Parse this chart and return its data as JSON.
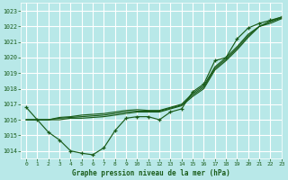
{
  "title": "Graphe pression niveau de la mer (hPa)",
  "bg_color": "#b8e8e8",
  "grid_color": "#ffffff",
  "line_color": "#1a5c1a",
  "text_color": "#1a5c1a",
  "xlim": [
    -0.5,
    23
  ],
  "ylim": [
    1013.5,
    1023.5
  ],
  "yticks": [
    1014,
    1015,
    1016,
    1017,
    1018,
    1019,
    1020,
    1021,
    1022,
    1023
  ],
  "xticks": [
    0,
    1,
    2,
    3,
    4,
    5,
    6,
    7,
    8,
    9,
    10,
    11,
    12,
    13,
    14,
    15,
    16,
    17,
    18,
    19,
    20,
    21,
    22,
    23
  ],
  "series_marked": [
    1016.8,
    1016.0,
    1015.2,
    1014.7,
    1014.0,
    1013.85,
    1013.75,
    1014.2,
    1015.3,
    1016.1,
    1016.2,
    1016.2,
    1016.0,
    1016.5,
    1016.7,
    1017.8,
    1018.3,
    1019.8,
    1020.0,
    1021.2,
    1021.9,
    1022.2,
    1022.4,
    1022.6
  ],
  "series_trend1": [
    1016.0,
    1016.0,
    1016.0,
    1016.0,
    1016.1,
    1016.1,
    1016.15,
    1016.2,
    1016.3,
    1016.4,
    1016.5,
    1016.5,
    1016.5,
    1016.7,
    1016.9,
    1017.5,
    1018.0,
    1019.2,
    1019.8,
    1020.5,
    1021.3,
    1022.0,
    1022.2,
    1022.5
  ],
  "series_trend2": [
    1016.0,
    1016.0,
    1016.0,
    1016.1,
    1016.15,
    1016.2,
    1016.25,
    1016.3,
    1016.4,
    1016.5,
    1016.55,
    1016.55,
    1016.55,
    1016.75,
    1016.95,
    1017.6,
    1018.1,
    1019.3,
    1019.9,
    1020.6,
    1021.4,
    1022.0,
    1022.3,
    1022.55
  ],
  "series_trend3": [
    1016.0,
    1016.0,
    1016.0,
    1016.15,
    1016.2,
    1016.3,
    1016.35,
    1016.4,
    1016.5,
    1016.6,
    1016.65,
    1016.6,
    1016.6,
    1016.8,
    1017.0,
    1017.7,
    1018.2,
    1019.4,
    1020.0,
    1020.7,
    1021.5,
    1022.0,
    1022.35,
    1022.6
  ]
}
